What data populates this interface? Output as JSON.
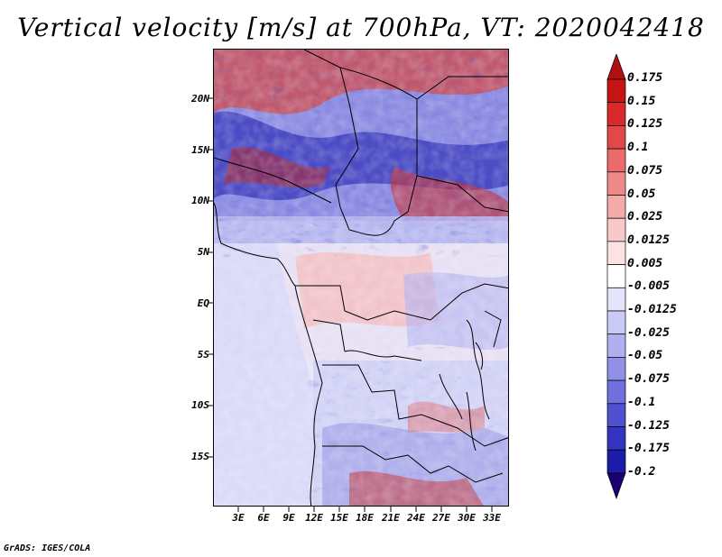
{
  "title": "Vertical velocity [m/s] at 700hPa, VT: 2020042418",
  "credit": "GrADS: IGES/COLA",
  "map": {
    "lat_labels": [
      "20N",
      "15N",
      "10N",
      "5N",
      "EQ",
      "5S",
      "10S",
      "15S"
    ],
    "lon_labels": [
      "3E",
      "6E",
      "9E",
      "12E",
      "15E",
      "18E",
      "21E",
      "24E",
      "27E",
      "30E",
      "33E"
    ]
  },
  "colorbar": {
    "labels": [
      "0.175",
      "0.15",
      "0.125",
      "0.1",
      "0.075",
      "0.05",
      "0.025",
      "0.0125",
      "0.005",
      "-0.005",
      "-0.0125",
      "-0.025",
      "-0.05",
      "-0.075",
      "-0.1",
      "-0.125",
      "-0.175",
      "-0.2"
    ],
    "colors": [
      "#c41414",
      "#d82a2a",
      "#e34848",
      "#eb6a6a",
      "#f08a8a",
      "#f5aaaa",
      "#f9c8c8",
      "#fce2e2",
      "#ffffff",
      "#e4e4fb",
      "#cacaf6",
      "#b0b0f0",
      "#9090e8",
      "#7070de",
      "#5050d0",
      "#3434c0",
      "#1c1ca8",
      "#0a0a88"
    ],
    "top_arrow_color": "#b01010",
    "bottom_arrow_color": "#1a0070"
  }
}
